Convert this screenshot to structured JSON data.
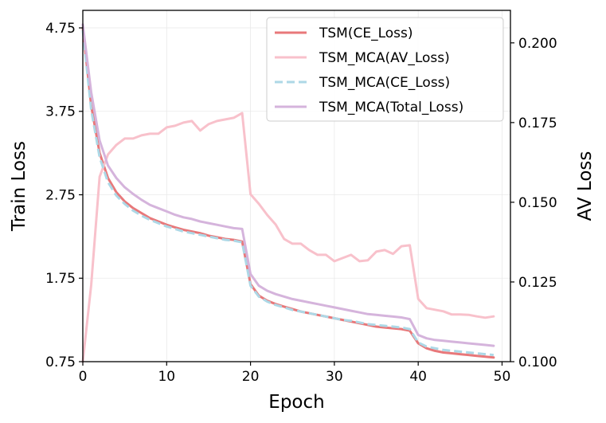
{
  "chart_data": {
    "type": "line",
    "xlabel": "Epoch",
    "ylabel": "Train Loss",
    "y2label": "AV Loss",
    "xlim": [
      0,
      51
    ],
    "ylim": [
      0.75,
      4.96
    ],
    "y2lim": [
      0.1,
      0.2102
    ],
    "xticks": [
      0,
      10,
      20,
      30,
      40,
      50
    ],
    "yticks": [
      0.75,
      1.75,
      2.75,
      3.75,
      4.75
    ],
    "ytick_labels": [
      "0.75",
      "1.75",
      "2.75",
      "3.75",
      "4.75"
    ],
    "y2ticks": [
      0.1,
      0.125,
      0.15,
      0.175,
      0.2
    ],
    "y2tick_labels": [
      "0.100",
      "0.125",
      "0.150",
      "0.175",
      "0.200"
    ],
    "grid": true,
    "legend_position": "top-right",
    "series": [
      {
        "name": "TSM(CE_Loss)",
        "axis": "left",
        "color": "#e8787a",
        "dash": "solid",
        "x": [
          0,
          1,
          2,
          3,
          4,
          5,
          6,
          7,
          8,
          9,
          10,
          11,
          12,
          13,
          14,
          15,
          16,
          17,
          18,
          19,
          20,
          21,
          22,
          23,
          24,
          25,
          26,
          27,
          28,
          29,
          30,
          31,
          32,
          33,
          34,
          35,
          36,
          37,
          38,
          39,
          40,
          41,
          42,
          43,
          44,
          45,
          46,
          47,
          48,
          49
        ],
        "values": [
          4.75,
          3.82,
          3.25,
          2.95,
          2.78,
          2.67,
          2.59,
          2.53,
          2.47,
          2.43,
          2.39,
          2.36,
          2.33,
          2.31,
          2.29,
          2.26,
          2.24,
          2.22,
          2.21,
          2.19,
          1.68,
          1.54,
          1.48,
          1.44,
          1.41,
          1.38,
          1.35,
          1.33,
          1.31,
          1.29,
          1.27,
          1.25,
          1.23,
          1.21,
          1.19,
          1.17,
          1.16,
          1.15,
          1.14,
          1.12,
          0.97,
          0.91,
          0.88,
          0.86,
          0.85,
          0.84,
          0.83,
          0.82,
          0.81,
          0.8
        ]
      },
      {
        "name": "TSM_MCA(AV_Loss)",
        "axis": "right",
        "color": "#f8c1cb",
        "dash": "solid",
        "x": [
          0,
          1,
          2,
          3,
          4,
          5,
          6,
          7,
          8,
          9,
          10,
          11,
          12,
          13,
          14,
          15,
          16,
          17,
          18,
          19,
          20,
          21,
          22,
          23,
          24,
          25,
          26,
          27,
          28,
          29,
          30,
          31,
          32,
          33,
          34,
          35,
          36,
          37,
          38,
          39,
          40,
          41,
          42,
          43,
          44,
          45,
          46,
          47,
          48,
          49
        ],
        "values": [
          0.095,
          0.124,
          0.158,
          0.165,
          0.168,
          0.17,
          0.17,
          0.171,
          0.1715,
          0.1715,
          0.1735,
          0.174,
          0.175,
          0.1755,
          0.1725,
          0.1745,
          0.1755,
          0.176,
          0.1765,
          0.178,
          0.1525,
          0.1495,
          0.146,
          0.143,
          0.1385,
          0.137,
          0.137,
          0.135,
          0.1335,
          0.1335,
          0.1315,
          0.1325,
          0.1335,
          0.1315,
          0.1318,
          0.1345,
          0.135,
          0.1338,
          0.1362,
          0.1365,
          0.1197,
          0.1168,
          0.1163,
          0.1158,
          0.1148,
          0.1148,
          0.1147,
          0.1142,
          0.1138,
          0.1142
        ]
      },
      {
        "name": "TSM_MCA(CE_Loss)",
        "axis": "left",
        "color": "#add8e6",
        "dash": "dashed",
        "x": [
          0,
          1,
          2,
          3,
          4,
          5,
          6,
          7,
          8,
          9,
          10,
          11,
          12,
          13,
          14,
          15,
          16,
          17,
          18,
          19,
          20,
          21,
          22,
          23,
          24,
          25,
          26,
          27,
          28,
          29,
          30,
          31,
          32,
          33,
          34,
          35,
          36,
          37,
          38,
          39,
          40,
          41,
          42,
          43,
          44,
          45,
          46,
          47,
          48,
          49
        ],
        "values": [
          4.72,
          3.77,
          3.2,
          2.9,
          2.74,
          2.64,
          2.56,
          2.5,
          2.45,
          2.41,
          2.37,
          2.34,
          2.31,
          2.29,
          2.27,
          2.25,
          2.23,
          2.21,
          2.2,
          2.18,
          1.66,
          1.53,
          1.47,
          1.43,
          1.4,
          1.37,
          1.35,
          1.33,
          1.31,
          1.29,
          1.27,
          1.25,
          1.24,
          1.22,
          1.2,
          1.19,
          1.18,
          1.17,
          1.16,
          1.14,
          0.98,
          0.93,
          0.91,
          0.89,
          0.88,
          0.87,
          0.86,
          0.85,
          0.84,
          0.83
        ]
      },
      {
        "name": "TSM_MCA(Total_Loss)",
        "axis": "left",
        "color": "#d5b4dc",
        "dash": "solid",
        "x": [
          0,
          1,
          2,
          3,
          4,
          5,
          6,
          7,
          8,
          9,
          10,
          11,
          12,
          13,
          14,
          15,
          16,
          17,
          18,
          19,
          20,
          21,
          22,
          23,
          24,
          25,
          26,
          27,
          28,
          29,
          30,
          31,
          32,
          33,
          34,
          35,
          36,
          37,
          38,
          39,
          40,
          41,
          42,
          43,
          44,
          45,
          46,
          47,
          48,
          49
        ],
        "values": [
          4.79,
          3.98,
          3.4,
          3.1,
          2.95,
          2.84,
          2.76,
          2.69,
          2.63,
          2.59,
          2.55,
          2.51,
          2.48,
          2.46,
          2.43,
          2.41,
          2.39,
          2.37,
          2.35,
          2.34,
          1.8,
          1.66,
          1.6,
          1.56,
          1.53,
          1.5,
          1.48,
          1.46,
          1.44,
          1.42,
          1.4,
          1.38,
          1.36,
          1.34,
          1.32,
          1.31,
          1.3,
          1.29,
          1.28,
          1.26,
          1.07,
          1.03,
          1.01,
          1.0,
          0.99,
          0.98,
          0.97,
          0.96,
          0.95,
          0.94
        ]
      }
    ]
  }
}
